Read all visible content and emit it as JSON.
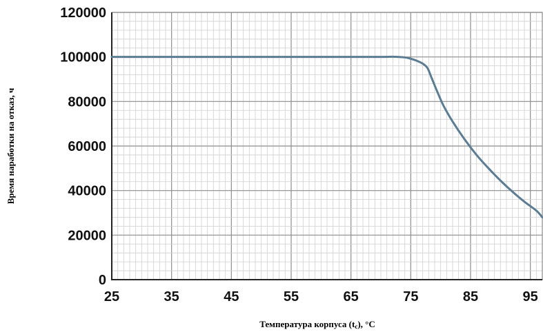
{
  "chart_data": {
    "type": "line",
    "title": "",
    "xlabel": "Температура корпуса (t",
    "xlabel_sub": "c",
    "xlabel_tail": "), °C",
    "ylabel": "Время наработки на отказ, ч",
    "xlim": [
      25,
      97
    ],
    "ylim": [
      0,
      120000
    ],
    "x_ticks": [
      "25",
      "35",
      "45",
      "55",
      "65",
      "75",
      "85",
      "95"
    ],
    "y_ticks": [
      "0",
      "20000",
      "40000",
      "60000",
      "80000",
      "100000",
      "120000"
    ],
    "grid": true,
    "legend": "none",
    "series": [
      {
        "x": [
          25,
          35,
          45,
          55,
          65,
          70,
          72,
          74,
          75,
          76,
          77,
          77.8,
          78.5,
          79.5,
          80.5,
          82,
          84,
          86,
          88,
          90,
          92,
          94,
          96,
          97
        ],
        "y": [
          100000,
          100000,
          100000,
          100000,
          100000,
          100000,
          100100,
          99800,
          99200,
          98300,
          97000,
          95000,
          90500,
          84000,
          78000,
          71000,
          63000,
          56000,
          50000,
          44500,
          39500,
          35000,
          31000,
          28000
        ],
        "color": "#5b7c93"
      }
    ]
  }
}
